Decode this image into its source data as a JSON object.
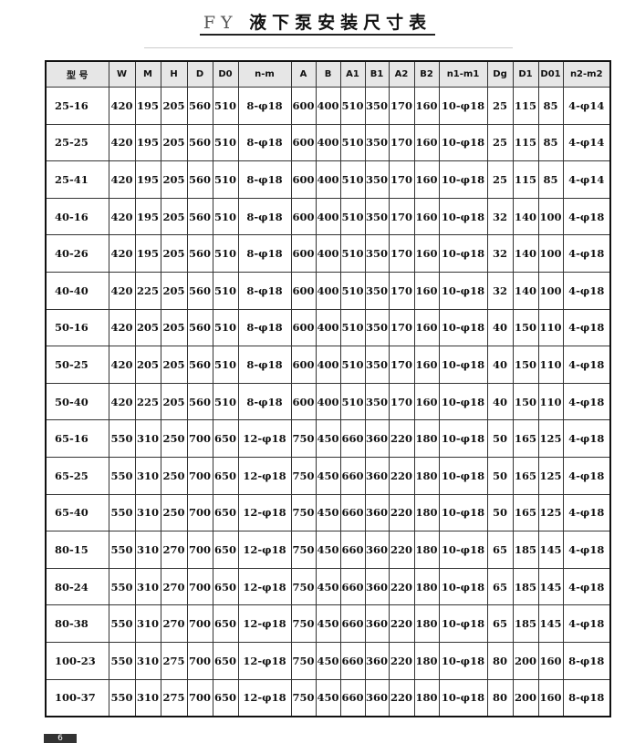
{
  "title_prefix": "FY",
  "title": "液下泵安装尺寸表",
  "page_number": "6",
  "headers": [
    "型  号",
    "W",
    "M",
    "H",
    "D",
    "D0",
    "n-m",
    "A",
    "B",
    "A1",
    "B1",
    "A2",
    "B2",
    "n1-m1",
    "Dg",
    "D1",
    "D01",
    "n2-m2"
  ],
  "rows": [
    [
      "25-16",
      "420",
      "195",
      "205",
      "560",
      "510",
      "8-φ18",
      "600",
      "400",
      "510",
      "350",
      "170",
      "160",
      "10-φ18",
      "25",
      "115",
      "85",
      "4-φ14"
    ],
    [
      "25-25",
      "420",
      "195",
      "205",
      "560",
      "510",
      "8-φ18",
      "600",
      "400",
      "510",
      "350",
      "170",
      "160",
      "10-φ18",
      "25",
      "115",
      "85",
      "4-φ14"
    ],
    [
      "25-41",
      "420",
      "195",
      "205",
      "560",
      "510",
      "8-φ18",
      "600",
      "400",
      "510",
      "350",
      "170",
      "160",
      "10-φ18",
      "25",
      "115",
      "85",
      "4-φ14"
    ],
    [
      "40-16",
      "420",
      "195",
      "205",
      "560",
      "510",
      "8-φ18",
      "600",
      "400",
      "510",
      "350",
      "170",
      "160",
      "10-φ18",
      "32",
      "140",
      "100",
      "4-φ18"
    ],
    [
      "40-26",
      "420",
      "195",
      "205",
      "560",
      "510",
      "8-φ18",
      "600",
      "400",
      "510",
      "350",
      "170",
      "160",
      "10-φ18",
      "32",
      "140",
      "100",
      "4-φ18"
    ],
    [
      "40-40",
      "420",
      "225",
      "205",
      "560",
      "510",
      "8-φ18",
      "600",
      "400",
      "510",
      "350",
      "170",
      "160",
      "10-φ18",
      "32",
      "140",
      "100",
      "4-φ18"
    ],
    [
      "50-16",
      "420",
      "205",
      "205",
      "560",
      "510",
      "8-φ18",
      "600",
      "400",
      "510",
      "350",
      "170",
      "160",
      "10-φ18",
      "40",
      "150",
      "110",
      "4-φ18"
    ],
    [
      "50-25",
      "420",
      "205",
      "205",
      "560",
      "510",
      "8-φ18",
      "600",
      "400",
      "510",
      "350",
      "170",
      "160",
      "10-φ18",
      "40",
      "150",
      "110",
      "4-φ18"
    ],
    [
      "50-40",
      "420",
      "225",
      "205",
      "560",
      "510",
      "8-φ18",
      "600",
      "400",
      "510",
      "350",
      "170",
      "160",
      "10-φ18",
      "40",
      "150",
      "110",
      "4-φ18"
    ],
    [
      "65-16",
      "550",
      "310",
      "250",
      "700",
      "650",
      "12-φ18",
      "750",
      "450",
      "660",
      "360",
      "220",
      "180",
      "10-φ18",
      "50",
      "165",
      "125",
      "4-φ18"
    ],
    [
      "65-25",
      "550",
      "310",
      "250",
      "700",
      "650",
      "12-φ18",
      "750",
      "450",
      "660",
      "360",
      "220",
      "180",
      "10-φ18",
      "50",
      "165",
      "125",
      "4-φ18"
    ],
    [
      "65-40",
      "550",
      "310",
      "250",
      "700",
      "650",
      "12-φ18",
      "750",
      "450",
      "660",
      "360",
      "220",
      "180",
      "10-φ18",
      "50",
      "165",
      "125",
      "4-φ18"
    ],
    [
      "80-15",
      "550",
      "310",
      "270",
      "700",
      "650",
      "12-φ18",
      "750",
      "450",
      "660",
      "360",
      "220",
      "180",
      "10-φ18",
      "65",
      "185",
      "145",
      "4-φ18"
    ],
    [
      "80-24",
      "550",
      "310",
      "270",
      "700",
      "650",
      "12-φ18",
      "750",
      "450",
      "660",
      "360",
      "220",
      "180",
      "10-φ18",
      "65",
      "185",
      "145",
      "4-φ18"
    ],
    [
      "80-38",
      "550",
      "310",
      "270",
      "700",
      "650",
      "12-φ18",
      "750",
      "450",
      "660",
      "360",
      "220",
      "180",
      "10-φ18",
      "65",
      "185",
      "145",
      "4-φ18"
    ],
    [
      "100-23",
      "550",
      "310",
      "275",
      "700",
      "650",
      "12-φ18",
      "750",
      "450",
      "660",
      "360",
      "220",
      "180",
      "10-φ18",
      "80",
      "200",
      "160",
      "8-φ18"
    ],
    [
      "100-37",
      "550",
      "310",
      "275",
      "700",
      "650",
      "12-φ18",
      "750",
      "450",
      "660",
      "360",
      "220",
      "180",
      "10-φ18",
      "80",
      "200",
      "160",
      "8-φ18"
    ]
  ]
}
